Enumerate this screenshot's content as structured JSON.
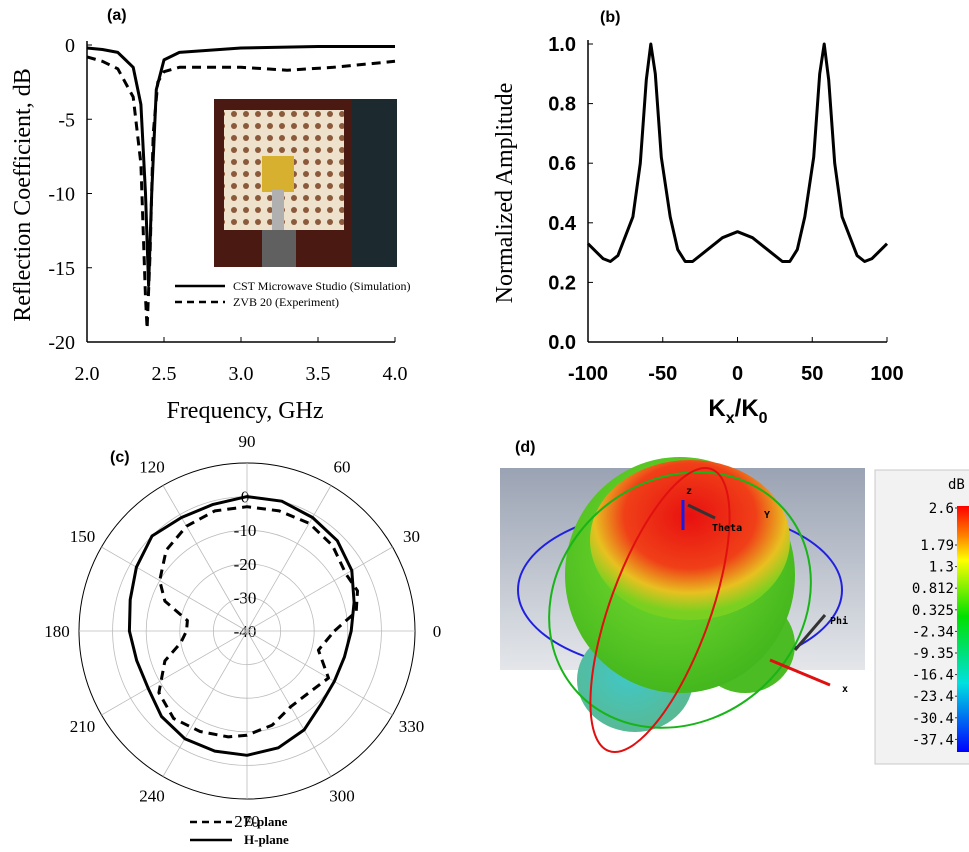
{
  "chart_data": [
    {
      "type": "line",
      "label": "(a)",
      "xlabel": "Frequency, GHz",
      "ylabel": "Reflection Coefficient, dB",
      "xlim": [
        2,
        4
      ],
      "ylim": [
        -20,
        0
      ],
      "xticks": [
        {
          "value": 2,
          "label": "2.0"
        },
        {
          "value": 2.5,
          "label": "2.5"
        },
        {
          "value": 3,
          "label": "3.0"
        },
        {
          "value": 3.5,
          "label": "3.5"
        },
        {
          "value": 4,
          "label": "4.0"
        }
      ],
      "yticks": [
        0,
        -5,
        -10,
        -15,
        -20
      ],
      "series": [
        {
          "name": "CST Microwave Studio (Simulation)",
          "color": "#000000",
          "dash": false,
          "x": [
            2.0,
            2.1,
            2.2,
            2.3,
            2.35,
            2.38,
            2.4,
            2.42,
            2.45,
            2.5,
            2.6,
            3.0,
            3.5,
            4.0
          ],
          "values": [
            -0.2,
            -0.3,
            -0.5,
            -1.5,
            -4,
            -10,
            -16.2,
            -10,
            -3,
            -1,
            -0.5,
            -0.2,
            -0.1,
            -0.1
          ]
        },
        {
          "name": "ZVB 20 (Experiment)",
          "color": "#000000",
          "dash": true,
          "x": [
            2.0,
            2.1,
            2.2,
            2.3,
            2.35,
            2.38,
            2.39,
            2.41,
            2.43,
            2.46,
            2.5,
            2.6,
            3.0,
            3.3,
            3.6,
            4.0
          ],
          "values": [
            -0.8,
            -1.1,
            -1.6,
            -3.5,
            -8,
            -17,
            -19.1,
            -14,
            -6,
            -2.5,
            -1.8,
            -1.5,
            -1.5,
            -1.7,
            -1.5,
            -1.1
          ]
        }
      ]
    },
    {
      "type": "line",
      "label": "(b)",
      "xlabel_parts": [
        "K",
        "x",
        "/K",
        "0"
      ],
      "ylabel": "Normalized Amplitude",
      "xlim": [
        -100,
        100
      ],
      "ylim": [
        0,
        1
      ],
      "xticks": [
        -100,
        -50,
        0,
        50,
        100
      ],
      "yticks": [
        {
          "value": 0,
          "label": "0.0"
        },
        0.2,
        0.4,
        0.6,
        0.8,
        {
          "value": 1,
          "label": "1.0"
        }
      ],
      "series": [
        {
          "name": "Normalized Amplitude",
          "color": "#000000",
          "dash": false,
          "x": [
            -100,
            -90,
            -85,
            -80,
            -70,
            -65,
            -61,
            -58,
            -55,
            -51,
            -45,
            -40,
            -35,
            -30,
            -20,
            -10,
            0,
            10,
            20,
            30,
            35,
            40,
            45,
            51,
            55,
            58,
            61,
            65,
            70,
            80,
            85,
            90,
            100
          ],
          "values": [
            0.33,
            0.28,
            0.27,
            0.29,
            0.42,
            0.6,
            0.88,
            1.0,
            0.9,
            0.62,
            0.42,
            0.31,
            0.27,
            0.27,
            0.31,
            0.35,
            0.37,
            0.35,
            0.31,
            0.27,
            0.27,
            0.31,
            0.42,
            0.62,
            0.9,
            1.0,
            0.88,
            0.6,
            0.42,
            0.29,
            0.27,
            0.28,
            0.33
          ]
        }
      ]
    },
    {
      "type": "polar",
      "label": "(c)",
      "rlim": [
        -40,
        10
      ],
      "rticks": [
        0,
        -10,
        -20,
        -30,
        -40
      ],
      "angle_ticks": [
        0,
        30,
        60,
        90,
        120,
        150,
        180,
        210,
        240,
        270,
        300,
        330
      ],
      "series": [
        {
          "name": "E-plane",
          "color": "#000000",
          "dash": true,
          "theta": [
            0,
            10,
            20,
            30,
            45,
            60,
            75,
            90,
            105,
            120,
            135,
            150,
            160,
            170,
            180,
            190,
            200,
            215,
            230,
            245,
            260,
            270,
            285,
            300,
            315,
            330,
            345
          ],
          "values": [
            -14,
            -7,
            -5,
            -6,
            -4,
            -3,
            -3,
            -3,
            -3,
            -4,
            -6,
            -10,
            -14,
            -22,
            -22,
            -20,
            -14,
            -8,
            -6,
            -7,
            -8,
            -9,
            -11,
            -14,
            -14,
            -12,
            -18
          ]
        },
        {
          "name": "H-plane",
          "color": "#000000",
          "dash": false,
          "theta": [
            0,
            15,
            30,
            45,
            60,
            75,
            90,
            105,
            120,
            135,
            150,
            165,
            180,
            195,
            210,
            225,
            240,
            255,
            270,
            285,
            300,
            315,
            330,
            345
          ],
          "values": [
            -9,
            -7,
            -4,
            -2,
            -1,
            0,
            0,
            -1,
            -1,
            0,
            -2,
            -4,
            -5,
            -6,
            -6,
            -4,
            -3,
            -3,
            -3,
            -4,
            -6,
            -9,
            -10,
            -10
          ]
        }
      ]
    },
    {
      "type": "colorbar",
      "label": "(d)",
      "unit": "dB",
      "ticks": [
        2.6,
        1.79,
        1.3,
        0.812,
        0.325,
        -2.34,
        -9.35,
        -16.4,
        -23.4,
        -30.4,
        -37.4
      ],
      "annotations": [
        "z",
        "Y",
        "Theta",
        "Phi",
        "x"
      ]
    }
  ]
}
